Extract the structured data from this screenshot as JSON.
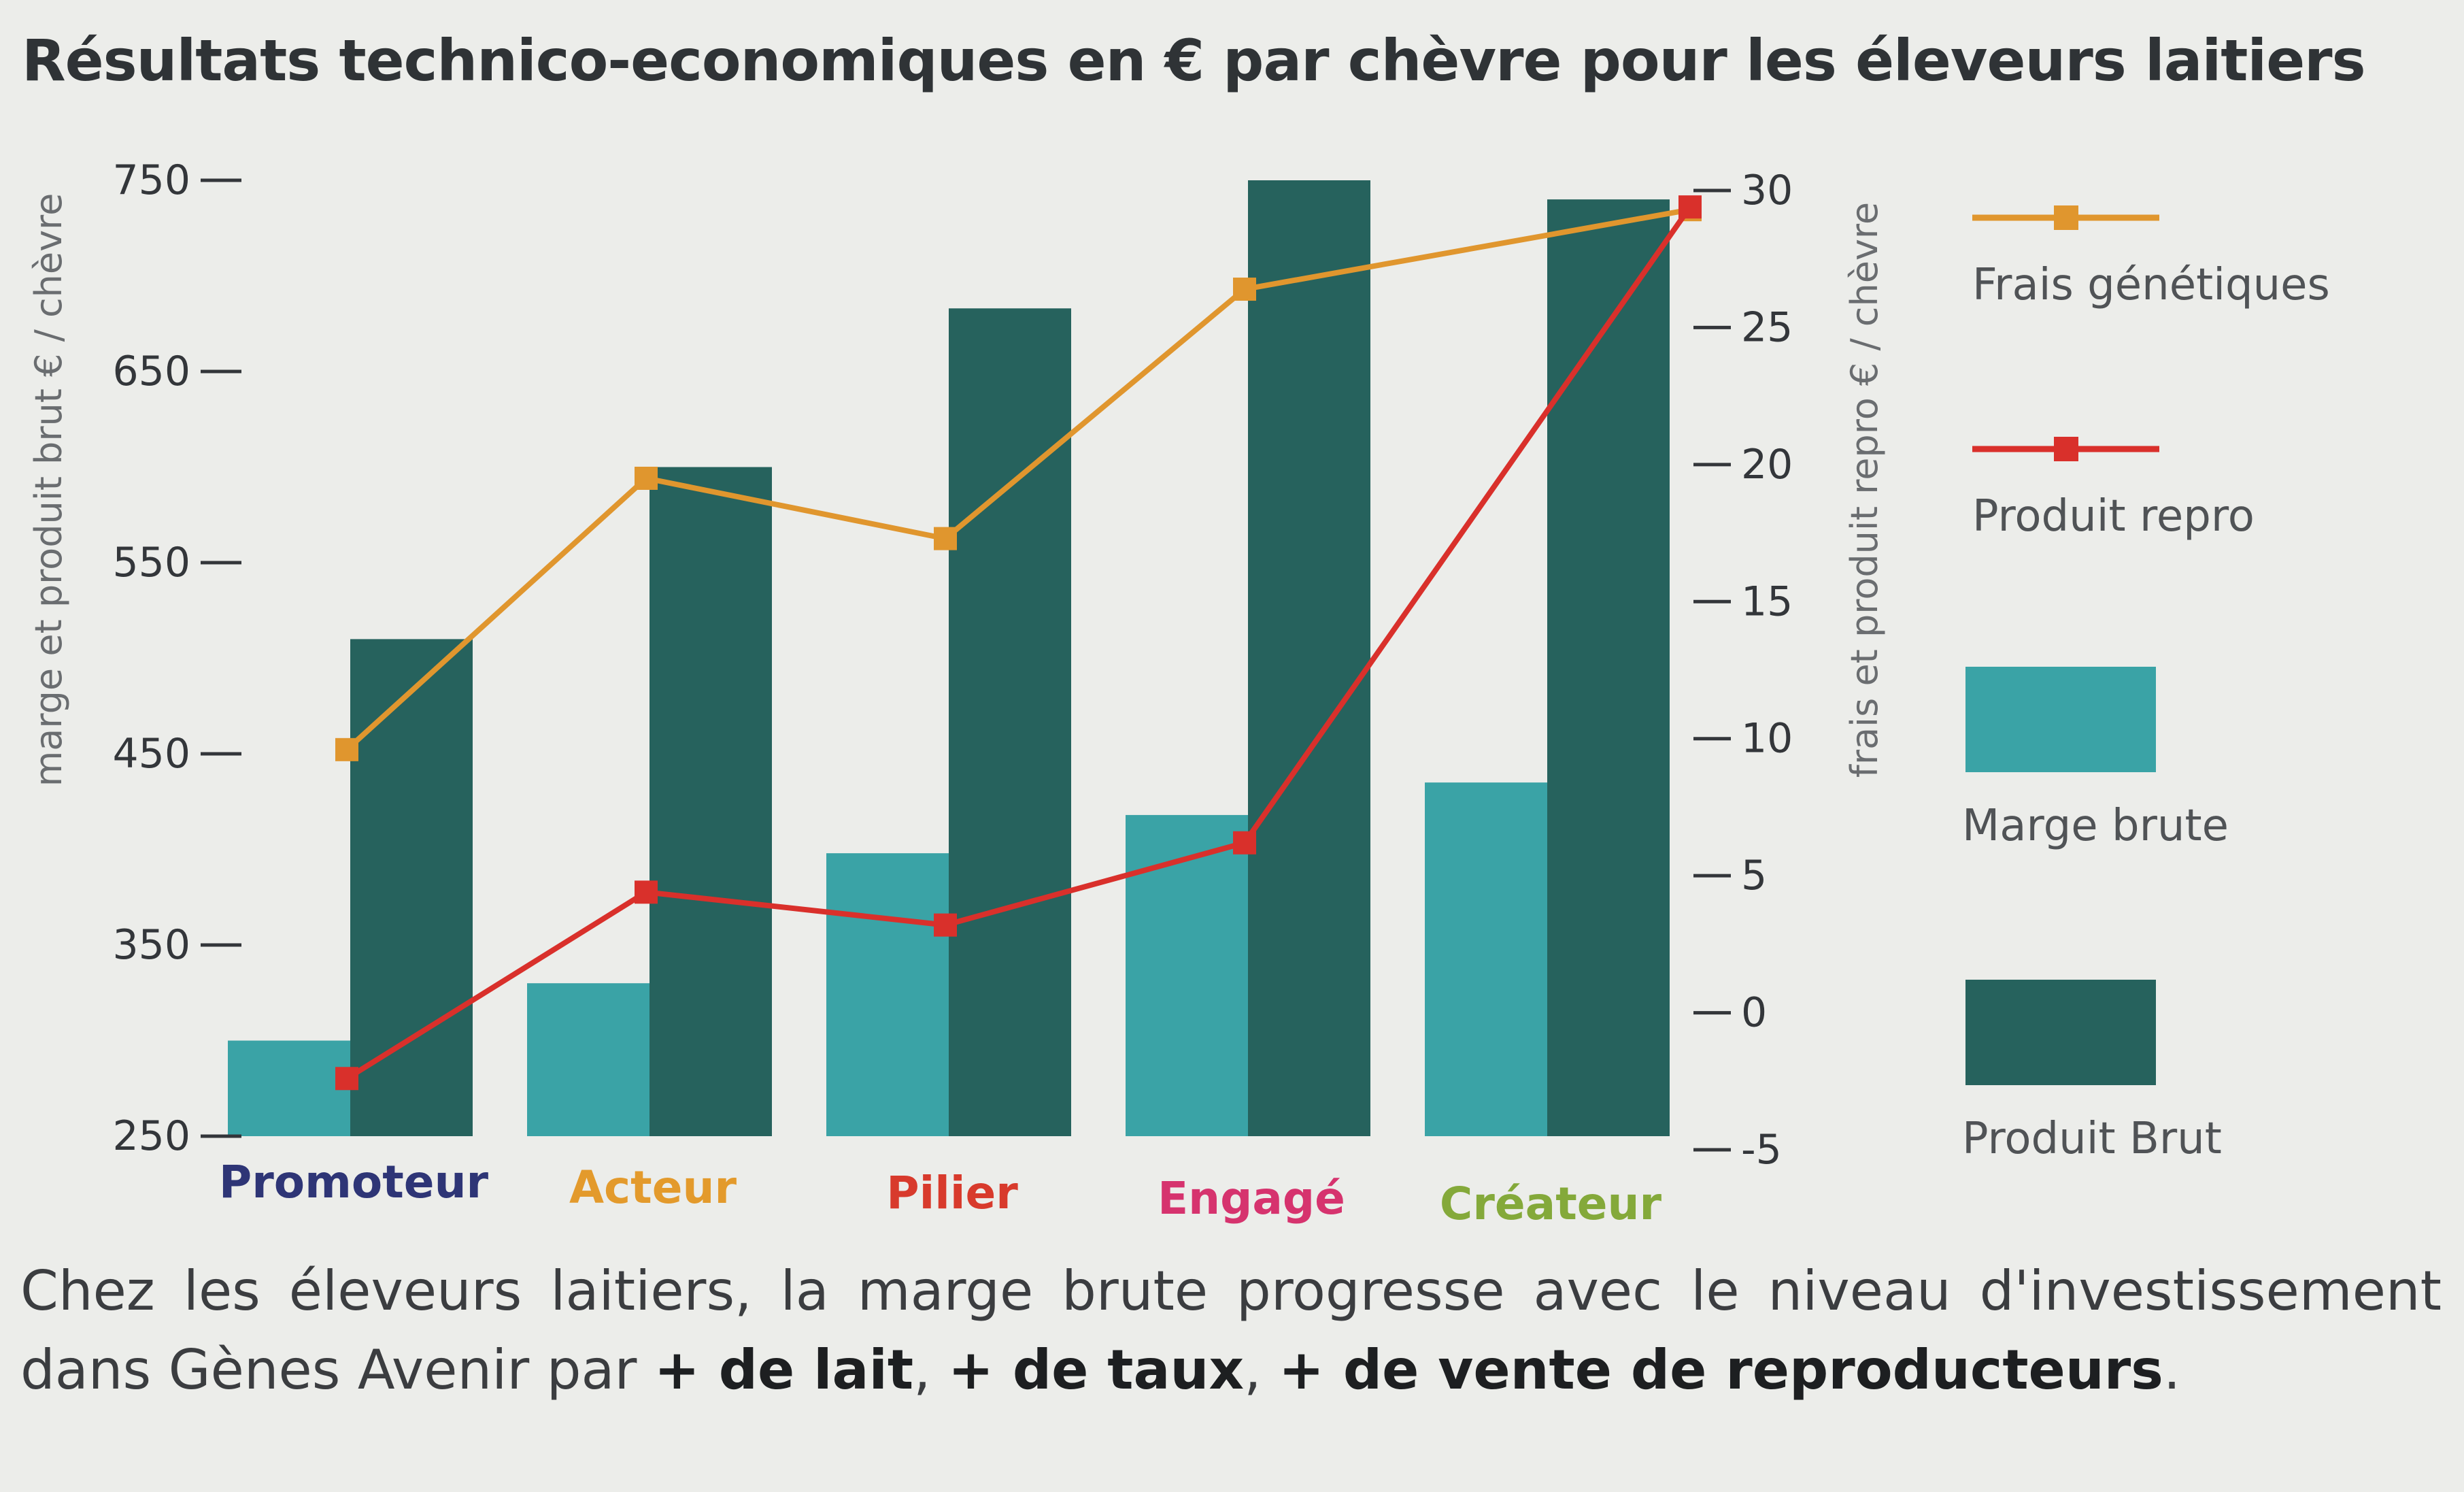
{
  "title": "Résultats technico-economiques en € par chèvre pour les éleveurs laitiers",
  "caption": {
    "text_before": "Chez les éleveurs laitiers, la marge brute progresse avec le niveau d'investissement dans Gènes Avenir par ",
    "bold_1": "+ de lait",
    "sep_1": ", ",
    "bold_2": "+ de taux",
    "sep_2": ", ",
    "bold_3": "+ de vente de reproducteurs",
    "text_after": "."
  },
  "chart_data": {
    "type": "bar",
    "categories": [
      "Promoteur",
      "Acteur",
      "Pilier",
      "Engagé",
      "Créateur"
    ],
    "category_colors": [
      "#2e3576",
      "#e39a2c",
      "#d83a2c",
      "#d6336e",
      "#84a93a"
    ],
    "left_axis": {
      "label": "marge et produit brut € / chèvre",
      "ylim": [
        250,
        750
      ],
      "ticks": [
        250,
        350,
        450,
        550,
        650,
        750
      ]
    },
    "right_axis": {
      "label": "frais et produit repro € / chèvre",
      "ylim": [
        -5,
        30
      ],
      "ticks": [
        -5,
        0,
        5,
        10,
        15,
        20,
        25,
        30
      ]
    },
    "series": [
      {
        "name": "Marge brute",
        "kind": "bar",
        "axis": "left",
        "color": "#3aa3a6",
        "values": [
          300,
          330,
          398,
          418,
          435
        ]
      },
      {
        "name": "Produit Brut",
        "kind": "bar",
        "axis": "left",
        "color": "#26625d",
        "values": [
          510,
          600,
          683,
          750,
          740
        ]
      },
      {
        "name": "Frais génétiques",
        "kind": "line",
        "axis": "right",
        "color": "#e0962e",
        "values": [
          9.6,
          19.5,
          17.3,
          26.4,
          29.3
        ]
      },
      {
        "name": "Produit repro",
        "kind": "line",
        "axis": "right",
        "color": "#d9302b",
        "values": [
          -2.4,
          4.4,
          3.2,
          6.2,
          29.4
        ]
      }
    ],
    "legend_position": "right",
    "grid": false
  }
}
